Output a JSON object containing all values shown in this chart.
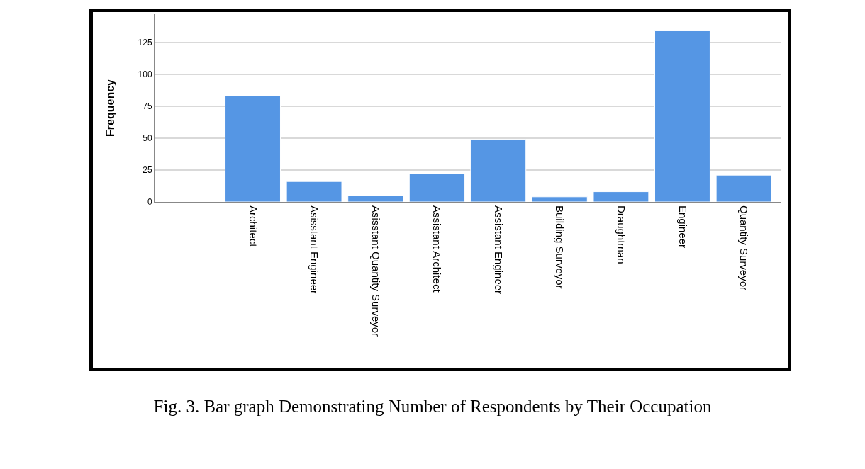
{
  "chart_data": {
    "type": "bar",
    "ylabel": "Frequency",
    "categories": [
      "Architect",
      "Asisstant Engineer",
      "Asisstant Quantity Surveyor",
      "Assistant Architect",
      "Assistant Engineer",
      "Building Surveyor",
      "Draughtman",
      "Engineer",
      "Quantity Surveyor"
    ],
    "values": [
      83,
      16,
      5,
      22,
      49,
      4,
      8,
      134,
      21
    ],
    "color": "#5596e4",
    "ylim": [
      0,
      147
    ],
    "yticks": [
      0,
      25,
      50,
      75,
      100,
      125
    ],
    "grid": "y",
    "annotations": [
      "Fig. 3. Bar graph Demonstrating Number of Respondents by Their Occupation"
    ]
  }
}
